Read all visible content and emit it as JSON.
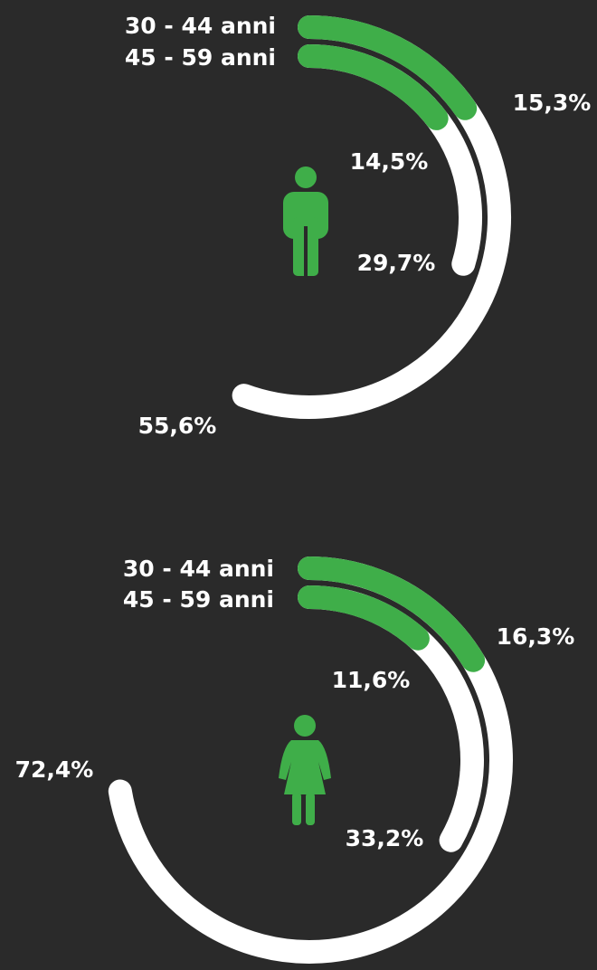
{
  "chart_data": [
    {
      "type": "radial_bar",
      "categories": [
        "30 - 44 anni",
        "45 - 59 anni"
      ],
      "series": [
        {
          "color": "#ffffff",
          "values": [
            55.6,
            29.7
          ],
          "value_labels": [
            "55,6%",
            "29,7%"
          ]
        },
        {
          "color": "#3fae49",
          "values": [
            15.3,
            14.5
          ],
          "value_labels": [
            "15,3%",
            "14,5%"
          ]
        }
      ]
    },
    {
      "type": "radial_bar",
      "categories": [
        "30 - 44 anni",
        "45 - 59 anni"
      ],
      "series": [
        {
          "color": "#ffffff",
          "values": [
            72.4,
            33.2
          ],
          "value_labels": [
            "72,4%",
            "33,2%"
          ]
        },
        {
          "color": "#3fae49",
          "values": [
            16.3,
            11.6
          ],
          "value_labels": [
            "16,3%",
            "11,6%"
          ]
        }
      ]
    }
  ]
}
